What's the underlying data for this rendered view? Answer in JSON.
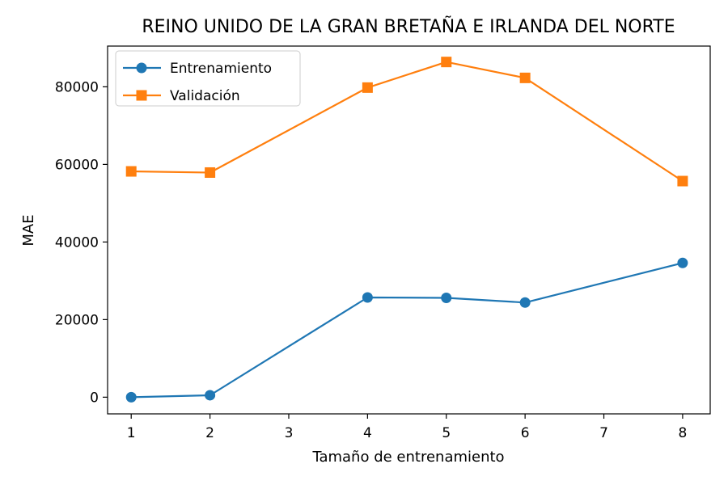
{
  "chart_data": {
    "type": "line",
    "title": "REINO UNIDO DE LA GRAN BRETAÑA E IRLANDA DEL NORTE",
    "xlabel": "Tamaño de entrenamiento",
    "ylabel": "MAE",
    "xlim": [
      0.7,
      8.35
    ],
    "ylim": [
      -4300,
      90500
    ],
    "xticks": [
      1,
      2,
      3,
      4,
      5,
      6,
      7,
      8
    ],
    "yticks": [
      0,
      20000,
      40000,
      60000,
      80000
    ],
    "grid": false,
    "legend_position": "top-left",
    "series": [
      {
        "name": "Entrenamiento",
        "color": "#1f77b4",
        "marker": "circle",
        "x": [
          1,
          2,
          4,
          5,
          6,
          8
        ],
        "y": [
          0,
          500,
          25700,
          25600,
          24400,
          34600
        ]
      },
      {
        "name": "Validación",
        "color": "#ff7f0e",
        "marker": "square",
        "x": [
          1,
          2,
          4,
          5,
          6,
          8
        ],
        "y": [
          58200,
          57900,
          79800,
          86400,
          82300,
          55700
        ]
      }
    ]
  }
}
